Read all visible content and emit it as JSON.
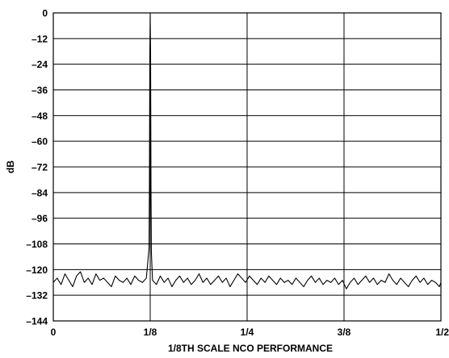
{
  "chart_data": {
    "type": "line",
    "title": "",
    "xlabel": "1/8TH SCALE NCO PERFORMANCE",
    "ylabel": "dB",
    "x_ticks": [
      {
        "value": 0,
        "label": "0"
      },
      {
        "value": 0.125,
        "label": "1/8"
      },
      {
        "value": 0.25,
        "label": "1/4"
      },
      {
        "value": 0.375,
        "label": "3/8"
      },
      {
        "value": 0.5,
        "label": "1/2"
      }
    ],
    "y_ticks": [
      {
        "value": 0,
        "label": "0"
      },
      {
        "value": -12,
        "label": "–12"
      },
      {
        "value": -24,
        "label": "–24"
      },
      {
        "value": -36,
        "label": "–36"
      },
      {
        "value": -48,
        "label": "–48"
      },
      {
        "value": -60,
        "label": "–60"
      },
      {
        "value": -72,
        "label": "–72"
      },
      {
        "value": -84,
        "label": "–84"
      },
      {
        "value": -96,
        "label": "–96"
      },
      {
        "value": -108,
        "label": "–108"
      },
      {
        "value": -120,
        "label": "–120"
      },
      {
        "value": -132,
        "label": "–132"
      },
      {
        "value": -144,
        "label": "–144"
      }
    ],
    "xlim": [
      0,
      0.5
    ],
    "ylim": [
      -144,
      0
    ],
    "grid": true,
    "series": [
      {
        "color": "#000000",
        "points": [
          [
            0,
            -126
          ],
          [
            0.005,
            -124
          ],
          [
            0.01,
            -127
          ],
          [
            0.015,
            -122
          ],
          [
            0.02,
            -125
          ],
          [
            0.025,
            -128
          ],
          [
            0.03,
            -123
          ],
          [
            0.035,
            -121
          ],
          [
            0.04,
            -126
          ],
          [
            0.045,
            -124
          ],
          [
            0.05,
            -127
          ],
          [
            0.055,
            -122
          ],
          [
            0.06,
            -125
          ],
          [
            0.065,
            -124
          ],
          [
            0.07,
            -126
          ],
          [
            0.075,
            -128
          ],
          [
            0.08,
            -123
          ],
          [
            0.085,
            -125
          ],
          [
            0.09,
            -126
          ],
          [
            0.095,
            -124
          ],
          [
            0.1,
            -127
          ],
          [
            0.105,
            -123
          ],
          [
            0.11,
            -125
          ],
          [
            0.115,
            -126
          ],
          [
            0.12,
            -124
          ],
          [
            0.1235,
            -110
          ],
          [
            0.124,
            -80
          ],
          [
            0.1245,
            -20
          ],
          [
            0.125,
            0
          ],
          [
            0.1255,
            -20
          ],
          [
            0.126,
            -80
          ],
          [
            0.1265,
            -112
          ],
          [
            0.128,
            -125
          ],
          [
            0.133,
            -127
          ],
          [
            0.138,
            -123
          ],
          [
            0.143,
            -126
          ],
          [
            0.148,
            -124
          ],
          [
            0.153,
            -128
          ],
          [
            0.158,
            -125
          ],
          [
            0.163,
            -123
          ],
          [
            0.168,
            -126
          ],
          [
            0.173,
            -124
          ],
          [
            0.178,
            -127
          ],
          [
            0.183,
            -125
          ],
          [
            0.188,
            -122
          ],
          [
            0.193,
            -126
          ],
          [
            0.198,
            -124
          ],
          [
            0.203,
            -127
          ],
          [
            0.208,
            -125
          ],
          [
            0.213,
            -123
          ],
          [
            0.218,
            -126
          ],
          [
            0.223,
            -124
          ],
          [
            0.228,
            -128
          ],
          [
            0.233,
            -125
          ],
          [
            0.238,
            -122
          ],
          [
            0.243,
            -124
          ],
          [
            0.248,
            -126
          ],
          [
            0.253,
            -123
          ],
          [
            0.258,
            -125
          ],
          [
            0.263,
            -127
          ],
          [
            0.268,
            -124
          ],
          [
            0.273,
            -126
          ],
          [
            0.278,
            -123
          ],
          [
            0.283,
            -125
          ],
          [
            0.288,
            -127
          ],
          [
            0.293,
            -124
          ],
          [
            0.298,
            -126
          ],
          [
            0.303,
            -125
          ],
          [
            0.308,
            -127
          ],
          [
            0.313,
            -124
          ],
          [
            0.318,
            -126
          ],
          [
            0.323,
            -128
          ],
          [
            0.328,
            -125
          ],
          [
            0.333,
            -123
          ],
          [
            0.338,
            -126
          ],
          [
            0.343,
            -124
          ],
          [
            0.348,
            -127
          ],
          [
            0.353,
            -125
          ],
          [
            0.358,
            -126
          ],
          [
            0.363,
            -124
          ],
          [
            0.368,
            -127
          ],
          [
            0.373,
            -125
          ],
          [
            0.378,
            -129
          ],
          [
            0.383,
            -126
          ],
          [
            0.388,
            -124
          ],
          [
            0.393,
            -127
          ],
          [
            0.398,
            -125
          ],
          [
            0.403,
            -123
          ],
          [
            0.408,
            -126
          ],
          [
            0.413,
            -124
          ],
          [
            0.418,
            -127
          ],
          [
            0.423,
            -125
          ],
          [
            0.428,
            -126
          ],
          [
            0.433,
            -122
          ],
          [
            0.438,
            -125
          ],
          [
            0.443,
            -127
          ],
          [
            0.448,
            -124
          ],
          [
            0.453,
            -126
          ],
          [
            0.458,
            -128
          ],
          [
            0.463,
            -125
          ],
          [
            0.468,
            -123
          ],
          [
            0.473,
            -126
          ],
          [
            0.478,
            -124
          ],
          [
            0.483,
            -127
          ],
          [
            0.488,
            -125
          ],
          [
            0.493,
            -126
          ],
          [
            0.498,
            -128
          ],
          [
            0.5,
            -126
          ]
        ]
      }
    ]
  }
}
